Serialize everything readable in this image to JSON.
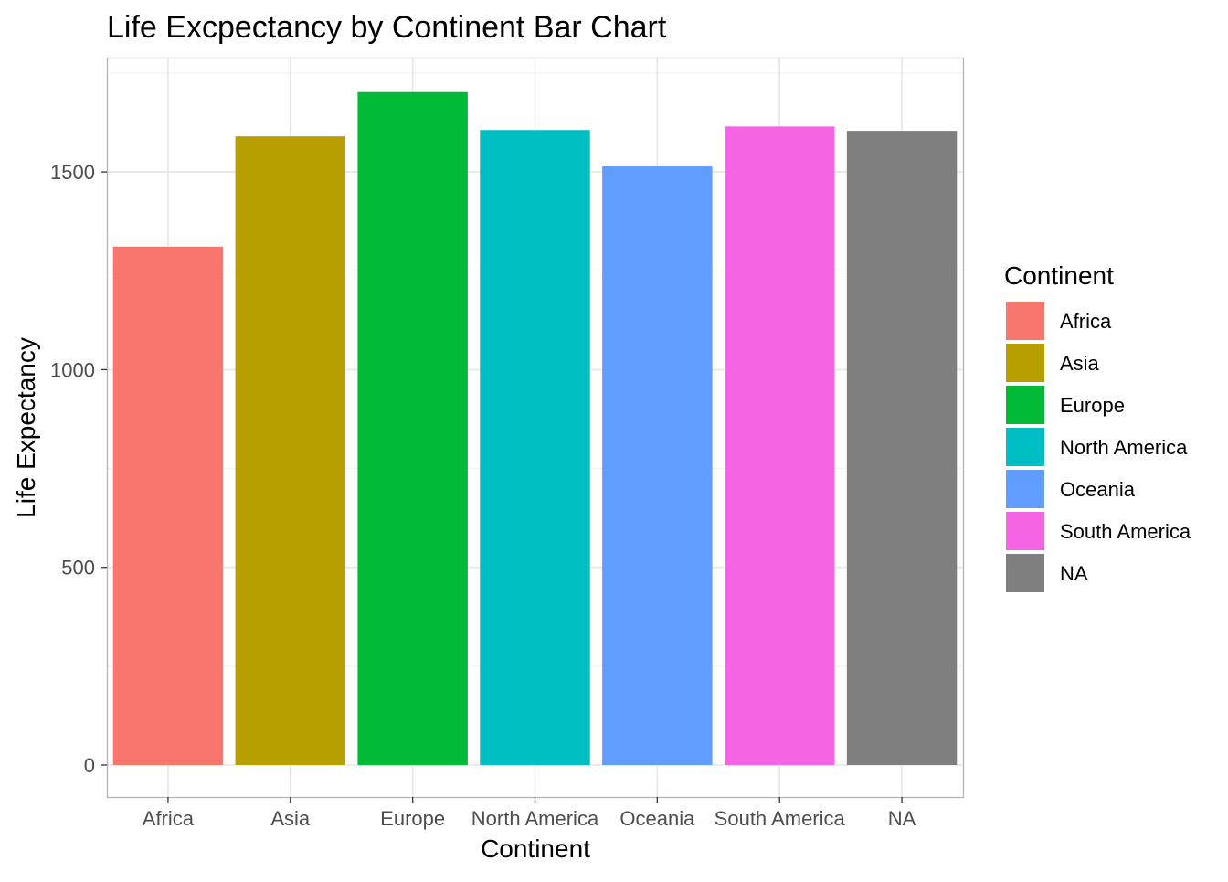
{
  "chart_data": {
    "type": "bar",
    "title": "Life Excpectancy by Continent Bar Chart",
    "xlabel": "Continent",
    "ylabel": "Life Expectancy",
    "categories": [
      "Africa",
      "Asia",
      "Europe",
      "North America",
      "Oceania",
      "South America",
      "NA"
    ],
    "values": [
      1311,
      1590,
      1702,
      1606,
      1514,
      1615,
      1604
    ],
    "colors": [
      "#F8766D",
      "#B79F00",
      "#00BA38",
      "#00BFC4",
      "#619CFF",
      "#F564E3",
      "#7F7F7F"
    ],
    "ylim": [
      -80,
      1800
    ],
    "y_ticks": [
      0,
      500,
      1000,
      1500
    ],
    "grid": true,
    "legend": {
      "title": "Continent",
      "placement": "right",
      "entries": [
        "Africa",
        "Asia",
        "Europe",
        "North America",
        "Oceania",
        "South America",
        "NA"
      ]
    }
  }
}
